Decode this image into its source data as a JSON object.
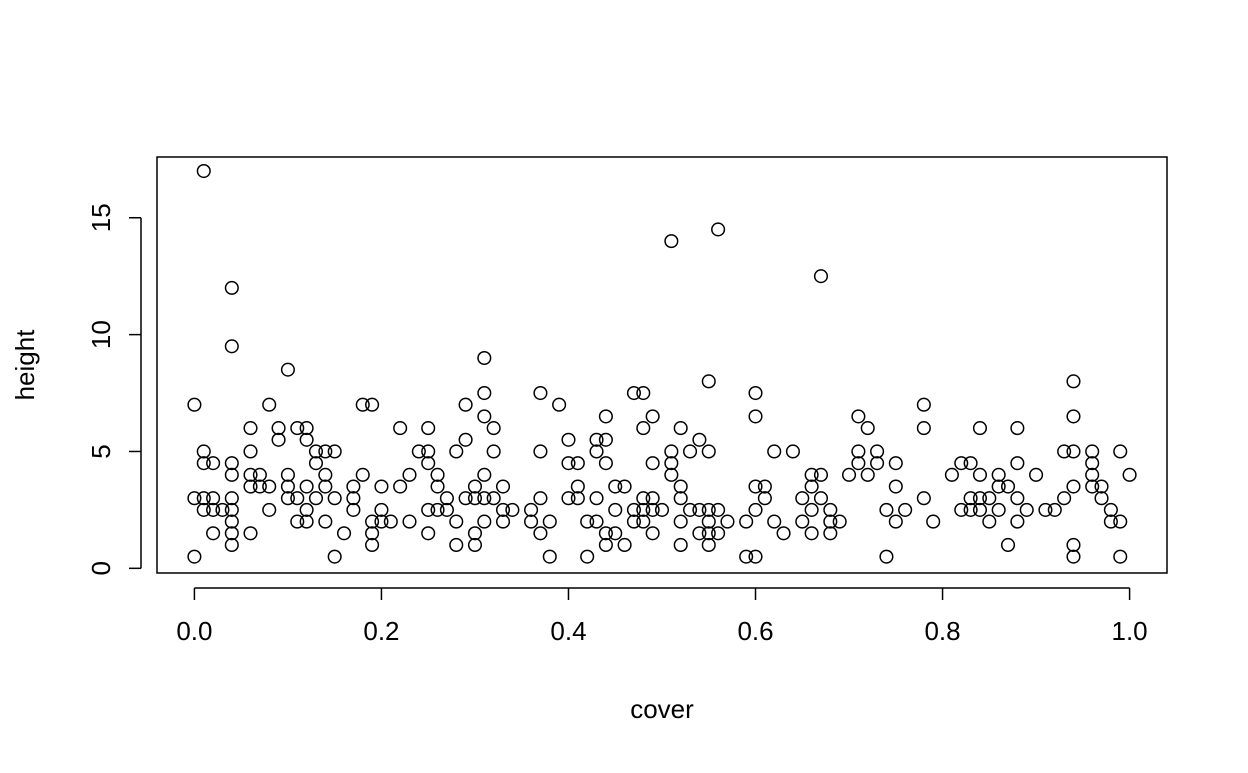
{
  "chart_data": {
    "type": "scatter",
    "title": "",
    "xlabel": "cover",
    "ylabel": "height",
    "xlim": [
      -0.04,
      1.04
    ],
    "ylim": [
      -0.2,
      17.6
    ],
    "xticks": [
      "0.0",
      "0.2",
      "0.4",
      "0.6",
      "0.8",
      "1.0"
    ],
    "yticks": [
      "0",
      "5",
      "10",
      "15"
    ],
    "grid": false,
    "legend": "none",
    "marker": "open-circle",
    "colors": {
      "marker": "#000000",
      "axis": "#000000",
      "background": "#ffffff"
    },
    "points": [
      [
        0.0,
        7.0
      ],
      [
        0.0,
        3.0
      ],
      [
        0.0,
        0.5
      ],
      [
        0.01,
        17.0
      ],
      [
        0.01,
        5.0
      ],
      [
        0.01,
        4.5
      ],
      [
        0.01,
        3.0
      ],
      [
        0.01,
        2.5
      ],
      [
        0.02,
        4.5
      ],
      [
        0.02,
        3.0
      ],
      [
        0.02,
        2.5
      ],
      [
        0.02,
        1.5
      ],
      [
        0.03,
        2.5
      ],
      [
        0.04,
        12.0
      ],
      [
        0.04,
        9.5
      ],
      [
        0.04,
        4.5
      ],
      [
        0.04,
        4.0
      ],
      [
        0.04,
        3.0
      ],
      [
        0.04,
        2.5
      ],
      [
        0.04,
        2.0
      ],
      [
        0.04,
        1.5
      ],
      [
        0.04,
        1.0
      ],
      [
        0.06,
        6.0
      ],
      [
        0.06,
        5.0
      ],
      [
        0.06,
        4.0
      ],
      [
        0.06,
        3.5
      ],
      [
        0.06,
        1.5
      ],
      [
        0.07,
        4.0
      ],
      [
        0.07,
        3.5
      ],
      [
        0.08,
        7.0
      ],
      [
        0.08,
        3.5
      ],
      [
        0.08,
        2.5
      ],
      [
        0.09,
        6.0
      ],
      [
        0.09,
        5.5
      ],
      [
        0.1,
        8.5
      ],
      [
        0.1,
        4.0
      ],
      [
        0.1,
        3.5
      ],
      [
        0.1,
        3.0
      ],
      [
        0.11,
        6.0
      ],
      [
        0.11,
        3.0
      ],
      [
        0.11,
        2.0
      ],
      [
        0.12,
        6.0
      ],
      [
        0.12,
        5.5
      ],
      [
        0.12,
        3.5
      ],
      [
        0.12,
        2.5
      ],
      [
        0.12,
        2.0
      ],
      [
        0.13,
        5.0
      ],
      [
        0.13,
        4.5
      ],
      [
        0.13,
        3.0
      ],
      [
        0.14,
        5.0
      ],
      [
        0.14,
        4.0
      ],
      [
        0.14,
        3.5
      ],
      [
        0.14,
        2.0
      ],
      [
        0.15,
        5.0
      ],
      [
        0.15,
        3.0
      ],
      [
        0.15,
        0.5
      ],
      [
        0.16,
        1.5
      ],
      [
        0.17,
        3.5
      ],
      [
        0.17,
        3.0
      ],
      [
        0.17,
        2.5
      ],
      [
        0.18,
        7.0
      ],
      [
        0.18,
        4.0
      ],
      [
        0.19,
        7.0
      ],
      [
        0.19,
        2.0
      ],
      [
        0.19,
        1.5
      ],
      [
        0.19,
        1.0
      ],
      [
        0.2,
        3.5
      ],
      [
        0.2,
        2.5
      ],
      [
        0.2,
        2.0
      ],
      [
        0.21,
        2.0
      ],
      [
        0.22,
        6.0
      ],
      [
        0.22,
        3.5
      ],
      [
        0.23,
        4.0
      ],
      [
        0.23,
        2.0
      ],
      [
        0.24,
        5.0
      ],
      [
        0.25,
        6.0
      ],
      [
        0.25,
        5.0
      ],
      [
        0.25,
        4.5
      ],
      [
        0.25,
        2.5
      ],
      [
        0.25,
        1.5
      ],
      [
        0.26,
        4.0
      ],
      [
        0.26,
        3.5
      ],
      [
        0.26,
        2.5
      ],
      [
        0.27,
        3.0
      ],
      [
        0.27,
        2.5
      ],
      [
        0.28,
        5.0
      ],
      [
        0.28,
        2.0
      ],
      [
        0.28,
        1.0
      ],
      [
        0.29,
        7.0
      ],
      [
        0.29,
        5.5
      ],
      [
        0.29,
        3.0
      ],
      [
        0.3,
        3.5
      ],
      [
        0.3,
        3.0
      ],
      [
        0.3,
        1.5
      ],
      [
        0.3,
        1.0
      ],
      [
        0.31,
        9.0
      ],
      [
        0.31,
        7.5
      ],
      [
        0.31,
        6.5
      ],
      [
        0.31,
        4.0
      ],
      [
        0.31,
        3.0
      ],
      [
        0.31,
        2.0
      ],
      [
        0.32,
        6.0
      ],
      [
        0.32,
        5.0
      ],
      [
        0.32,
        3.0
      ],
      [
        0.33,
        3.5
      ],
      [
        0.33,
        2.5
      ],
      [
        0.33,
        2.0
      ],
      [
        0.34,
        2.5
      ],
      [
        0.36,
        2.5
      ],
      [
        0.36,
        2.0
      ],
      [
        0.37,
        7.5
      ],
      [
        0.37,
        5.0
      ],
      [
        0.37,
        3.0
      ],
      [
        0.37,
        1.5
      ],
      [
        0.38,
        2.0
      ],
      [
        0.38,
        0.5
      ],
      [
        0.39,
        7.0
      ],
      [
        0.4,
        5.5
      ],
      [
        0.4,
        4.5
      ],
      [
        0.4,
        3.0
      ],
      [
        0.41,
        4.5
      ],
      [
        0.41,
        3.5
      ],
      [
        0.41,
        3.0
      ],
      [
        0.42,
        2.0
      ],
      [
        0.42,
        0.5
      ],
      [
        0.43,
        5.5
      ],
      [
        0.43,
        5.0
      ],
      [
        0.43,
        3.0
      ],
      [
        0.43,
        2.0
      ],
      [
        0.44,
        6.5
      ],
      [
        0.44,
        5.5
      ],
      [
        0.44,
        4.5
      ],
      [
        0.44,
        1.5
      ],
      [
        0.44,
        1.0
      ],
      [
        0.45,
        3.5
      ],
      [
        0.45,
        2.5
      ],
      [
        0.45,
        1.5
      ],
      [
        0.46,
        3.5
      ],
      [
        0.46,
        1.0
      ],
      [
        0.47,
        7.5
      ],
      [
        0.47,
        2.5
      ],
      [
        0.47,
        2.0
      ],
      [
        0.48,
        7.5
      ],
      [
        0.48,
        6.0
      ],
      [
        0.48,
        3.0
      ],
      [
        0.48,
        2.5
      ],
      [
        0.48,
        2.0
      ],
      [
        0.49,
        6.5
      ],
      [
        0.49,
        4.5
      ],
      [
        0.49,
        3.0
      ],
      [
        0.49,
        2.5
      ],
      [
        0.49,
        1.5
      ],
      [
        0.5,
        2.5
      ],
      [
        0.51,
        14.0
      ],
      [
        0.51,
        5.0
      ],
      [
        0.51,
        4.5
      ],
      [
        0.51,
        4.0
      ],
      [
        0.52,
        6.0
      ],
      [
        0.52,
        3.5
      ],
      [
        0.52,
        3.0
      ],
      [
        0.52,
        2.0
      ],
      [
        0.52,
        1.0
      ],
      [
        0.53,
        5.0
      ],
      [
        0.53,
        2.5
      ],
      [
        0.54,
        5.5
      ],
      [
        0.54,
        2.5
      ],
      [
        0.54,
        1.5
      ],
      [
        0.55,
        8.0
      ],
      [
        0.55,
        5.0
      ],
      [
        0.55,
        2.5
      ],
      [
        0.55,
        2.0
      ],
      [
        0.55,
        1.5
      ],
      [
        0.55,
        1.0
      ],
      [
        0.56,
        14.5
      ],
      [
        0.56,
        2.5
      ],
      [
        0.56,
        1.5
      ],
      [
        0.57,
        2.0
      ],
      [
        0.59,
        2.0
      ],
      [
        0.59,
        0.5
      ],
      [
        0.6,
        7.5
      ],
      [
        0.6,
        6.5
      ],
      [
        0.6,
        3.5
      ],
      [
        0.6,
        2.5
      ],
      [
        0.6,
        0.5
      ],
      [
        0.61,
        3.5
      ],
      [
        0.61,
        3.0
      ],
      [
        0.62,
        5.0
      ],
      [
        0.62,
        2.0
      ],
      [
        0.63,
        1.5
      ],
      [
        0.64,
        5.0
      ],
      [
        0.65,
        3.0
      ],
      [
        0.65,
        2.0
      ],
      [
        0.66,
        4.0
      ],
      [
        0.66,
        3.5
      ],
      [
        0.66,
        2.5
      ],
      [
        0.66,
        1.5
      ],
      [
        0.67,
        12.5
      ],
      [
        0.67,
        4.0
      ],
      [
        0.67,
        3.0
      ],
      [
        0.68,
        2.5
      ],
      [
        0.68,
        2.0
      ],
      [
        0.68,
        1.5
      ],
      [
        0.69,
        2.0
      ],
      [
        0.7,
        4.0
      ],
      [
        0.71,
        6.5
      ],
      [
        0.71,
        5.0
      ],
      [
        0.71,
        4.5
      ],
      [
        0.72,
        6.0
      ],
      [
        0.72,
        4.0
      ],
      [
        0.73,
        5.0
      ],
      [
        0.73,
        4.5
      ],
      [
        0.74,
        2.5
      ],
      [
        0.74,
        0.5
      ],
      [
        0.75,
        4.5
      ],
      [
        0.75,
        3.5
      ],
      [
        0.75,
        2.0
      ],
      [
        0.76,
        2.5
      ],
      [
        0.78,
        7.0
      ],
      [
        0.78,
        6.0
      ],
      [
        0.78,
        3.0
      ],
      [
        0.79,
        2.0
      ],
      [
        0.81,
        4.0
      ],
      [
        0.82,
        4.5
      ],
      [
        0.82,
        2.5
      ],
      [
        0.83,
        4.5
      ],
      [
        0.83,
        3.0
      ],
      [
        0.83,
        2.5
      ],
      [
        0.84,
        6.0
      ],
      [
        0.84,
        4.0
      ],
      [
        0.84,
        3.0
      ],
      [
        0.84,
        2.5
      ],
      [
        0.85,
        3.0
      ],
      [
        0.85,
        2.0
      ],
      [
        0.86,
        4.0
      ],
      [
        0.86,
        3.5
      ],
      [
        0.86,
        2.5
      ],
      [
        0.87,
        3.5
      ],
      [
        0.87,
        1.0
      ],
      [
        0.88,
        6.0
      ],
      [
        0.88,
        4.5
      ],
      [
        0.88,
        3.0
      ],
      [
        0.88,
        2.0
      ],
      [
        0.89,
        2.5
      ],
      [
        0.9,
        4.0
      ],
      [
        0.91,
        2.5
      ],
      [
        0.92,
        2.5
      ],
      [
        0.93,
        5.0
      ],
      [
        0.93,
        3.0
      ],
      [
        0.94,
        8.0
      ],
      [
        0.94,
        6.5
      ],
      [
        0.94,
        5.0
      ],
      [
        0.94,
        3.5
      ],
      [
        0.94,
        1.0
      ],
      [
        0.94,
        0.5
      ],
      [
        0.96,
        5.0
      ],
      [
        0.96,
        4.5
      ],
      [
        0.96,
        4.0
      ],
      [
        0.96,
        3.5
      ],
      [
        0.97,
        3.5
      ],
      [
        0.97,
        3.0
      ],
      [
        0.98,
        2.5
      ],
      [
        0.98,
        2.0
      ],
      [
        0.99,
        5.0
      ],
      [
        0.99,
        2.0
      ],
      [
        0.99,
        0.5
      ],
      [
        1.0,
        4.0
      ]
    ]
  }
}
